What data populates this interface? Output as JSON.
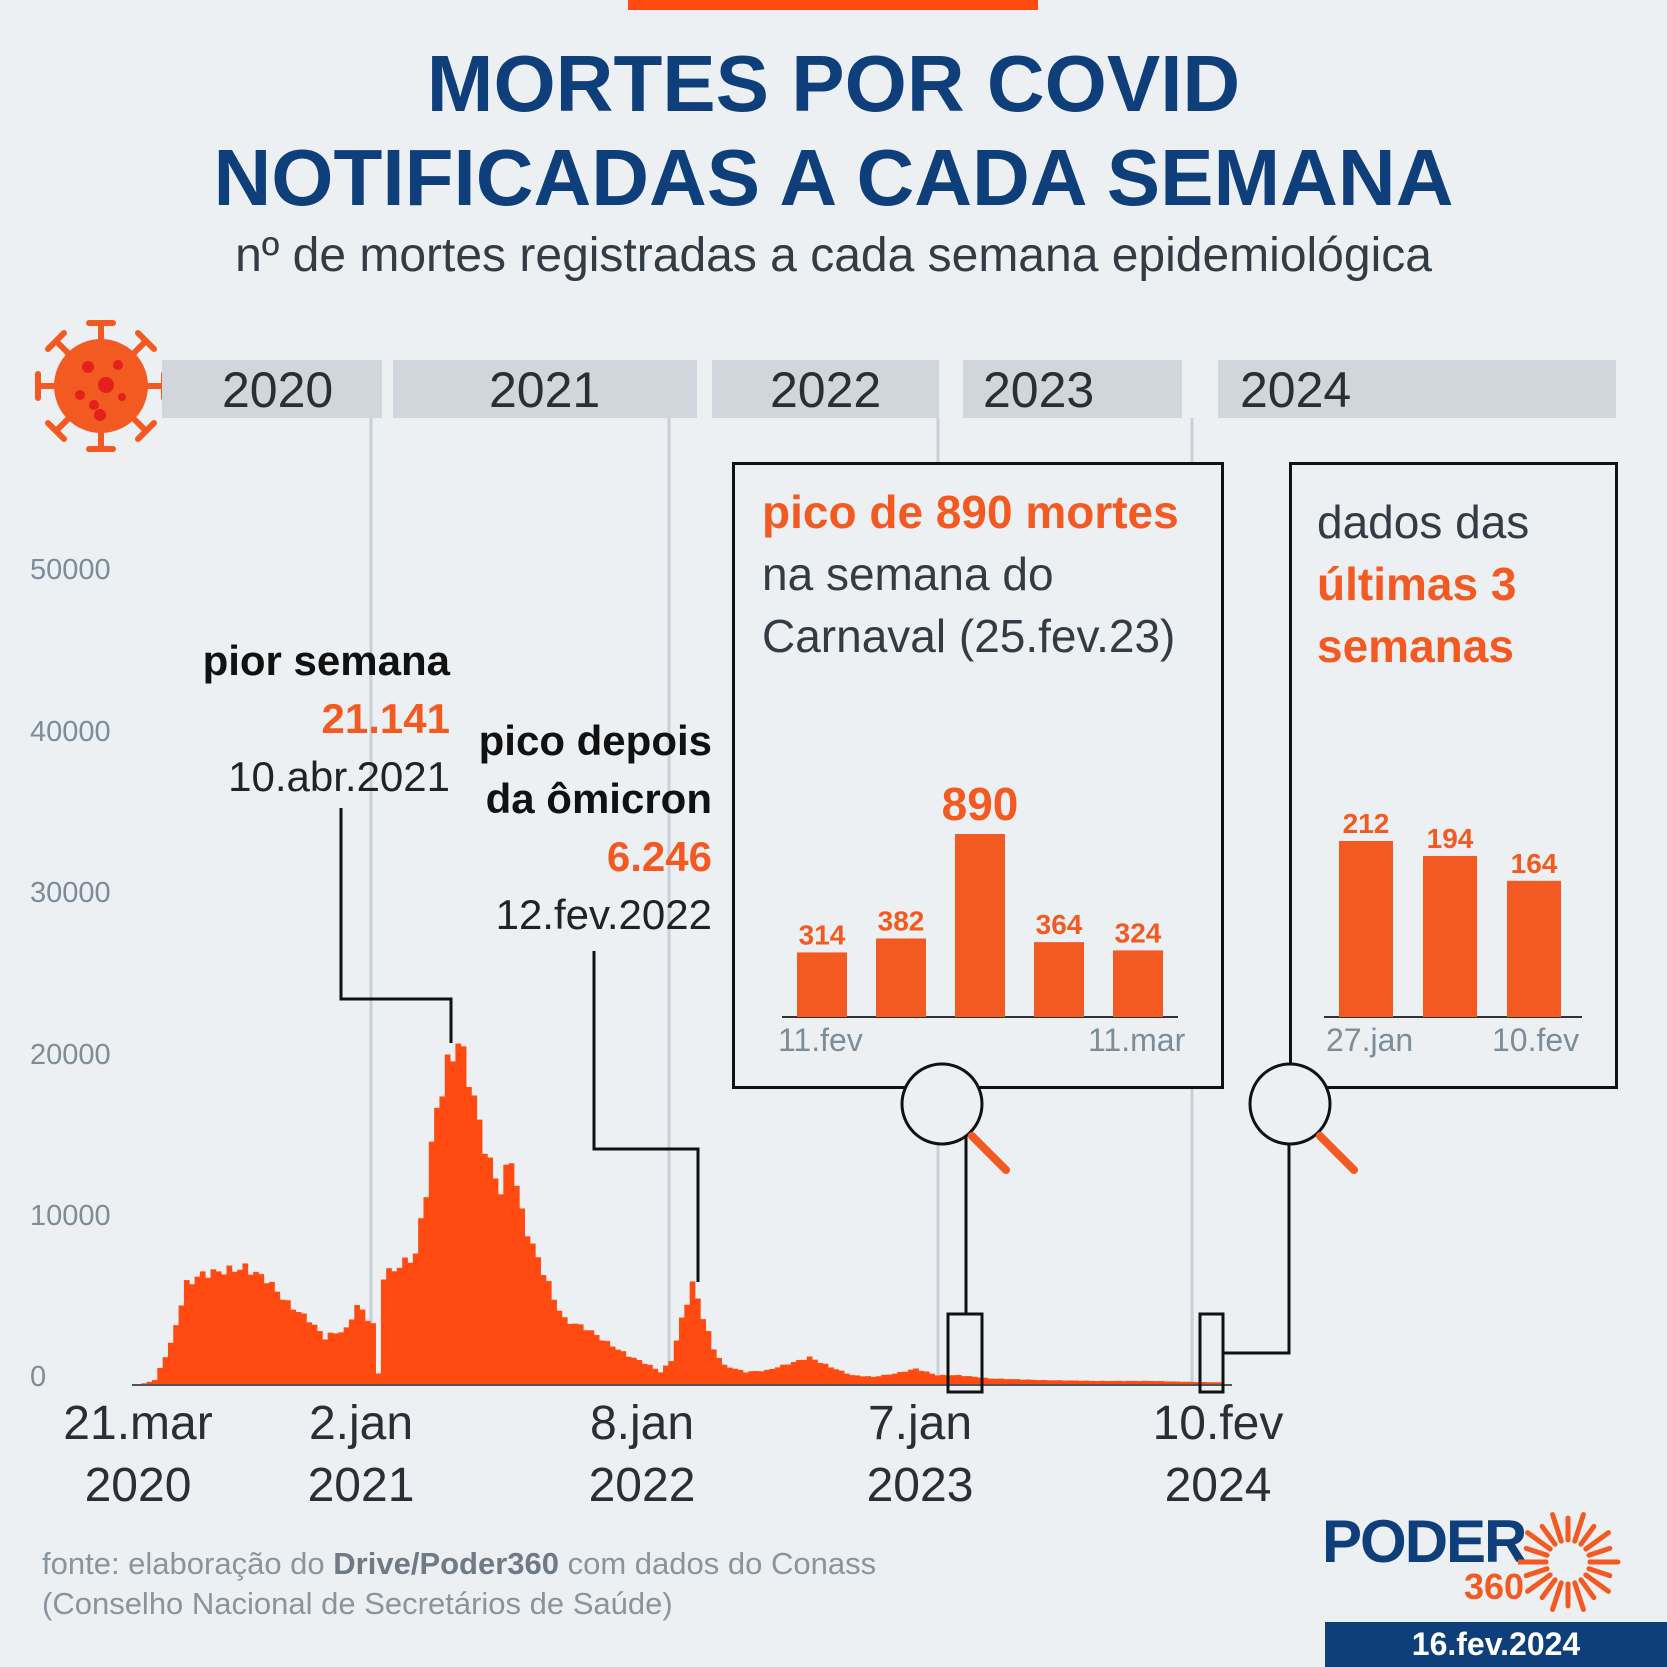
{
  "header": {
    "title_line1": "MORTES POR COVID",
    "title_line2": "NOTIFICADAS A CADA SEMANA",
    "subtitle": "nº de mortes registradas a cada semana epidemiológica"
  },
  "years": [
    "2020",
    "2021",
    "2022",
    "2023",
    "2024"
  ],
  "y_ticks": [
    "0",
    "10000",
    "20000",
    "30000",
    "40000",
    "50000"
  ],
  "x_labels": [
    {
      "line1": "21.mar",
      "line2": "2020"
    },
    {
      "line1": "2.jan",
      "line2": "2021"
    },
    {
      "line1": "8.jan",
      "line2": "2022"
    },
    {
      "line1": "7.jan",
      "line2": "2023"
    },
    {
      "line1": "10.fev",
      "line2": "2024"
    }
  ],
  "annotations": {
    "worst": {
      "title": "pior semana",
      "value": "21.141",
      "date": "10.abr.2021"
    },
    "omicron": {
      "title_line1": "pico depois",
      "title_line2": "da ômicron",
      "value": "6.246",
      "date": "12.fev.2022"
    }
  },
  "carnaval_box": {
    "line1": "pico de 890 mortes",
    "line2": "na semana do",
    "line3": "Carnaval (25.fev.23)",
    "x_start": "11.fev",
    "x_end": "11.mar"
  },
  "recent_box": {
    "line1": "dados das",
    "line2": "últimas 3",
    "line3": "semanas",
    "x_start": "27.jan",
    "x_end": "10.fev"
  },
  "footer": {
    "source_prefix": "fonte: elaboração do ",
    "source_bold": "Drive/Poder360",
    "source_suffix": " com dados do Conass",
    "source_line2": "(Conselho Nacional de Secretários de Saúde)",
    "logo_word": "PODER",
    "logo_number": "360",
    "date": "16.fev.2024"
  },
  "colors": {
    "accent": "#ff4b12",
    "bar": "#f25a22",
    "navy": "#0f3f7a"
  },
  "chart_data": [
    {
      "type": "bar",
      "title": "MORTES POR COVID NOTIFICADAS A CADA SEMANA",
      "ylim": [
        0,
        50000
      ],
      "x_start_week": "21.mar.2020",
      "x_end_week": "10.fev.2024",
      "peaks": [
        {
          "label": "pior semana",
          "date": "10.abr.2021",
          "value": 21141
        },
        {
          "label": "pico depois da ômicron",
          "date": "12.fev.2022",
          "value": 6246
        }
      ],
      "keyframes": [
        {
          "week": 0,
          "value": 0
        },
        {
          "week": 3,
          "value": 300
        },
        {
          "week": 6,
          "value": 2500
        },
        {
          "week": 9,
          "value": 6200
        },
        {
          "week": 12,
          "value": 6800
        },
        {
          "week": 16,
          "value": 7000
        },
        {
          "week": 20,
          "value": 7200
        },
        {
          "week": 24,
          "value": 6500
        },
        {
          "week": 28,
          "value": 5000
        },
        {
          "week": 32,
          "value": 4000
        },
        {
          "week": 35,
          "value": 2900
        },
        {
          "week": 36,
          "value": 3100
        },
        {
          "week": 39,
          "value": 3400
        },
        {
          "week": 41,
          "value": 4900
        },
        {
          "week": 44,
          "value": 3700
        },
        {
          "week": 45,
          "value": 700
        },
        {
          "week": 46,
          "value": 6700
        },
        {
          "week": 49,
          "value": 7300
        },
        {
          "week": 52,
          "value": 8000
        },
        {
          "week": 54,
          "value": 12000
        },
        {
          "week": 56,
          "value": 17000
        },
        {
          "week": 58,
          "value": 19500
        },
        {
          "week": 60,
          "value": 21141
        },
        {
          "week": 62,
          "value": 19000
        },
        {
          "week": 64,
          "value": 16000
        },
        {
          "week": 66,
          "value": 13500
        },
        {
          "week": 68,
          "value": 12000
        },
        {
          "week": 70,
          "value": 14000
        },
        {
          "week": 72,
          "value": 10500
        },
        {
          "week": 74,
          "value": 8500
        },
        {
          "week": 76,
          "value": 7000
        },
        {
          "week": 78,
          "value": 5300
        },
        {
          "week": 80,
          "value": 4000
        },
        {
          "week": 84,
          "value": 3500
        },
        {
          "week": 88,
          "value": 2600
        },
        {
          "week": 92,
          "value": 1800
        },
        {
          "week": 96,
          "value": 1200
        },
        {
          "week": 98,
          "value": 800
        },
        {
          "week": 100,
          "value": 1500
        },
        {
          "week": 102,
          "value": 4000
        },
        {
          "week": 104,
          "value": 6246
        },
        {
          "week": 106,
          "value": 4200
        },
        {
          "week": 108,
          "value": 2200
        },
        {
          "week": 110,
          "value": 1200
        },
        {
          "week": 114,
          "value": 800
        },
        {
          "week": 118,
          "value": 900
        },
        {
          "week": 122,
          "value": 1300
        },
        {
          "week": 126,
          "value": 1700
        },
        {
          "week": 130,
          "value": 1100
        },
        {
          "week": 134,
          "value": 600
        },
        {
          "week": 138,
          "value": 500
        },
        {
          "week": 142,
          "value": 700
        },
        {
          "week": 146,
          "value": 1000
        },
        {
          "week": 150,
          "value": 600
        },
        {
          "week": 154,
          "value": 600
        },
        {
          "week": 160,
          "value": 400
        },
        {
          "week": 170,
          "value": 300
        },
        {
          "week": 180,
          "value": 250
        },
        {
          "week": 190,
          "value": 250
        },
        {
          "week": 196,
          "value": 200
        },
        {
          "week": 203,
          "value": 164
        }
      ]
    },
    {
      "type": "bar",
      "title": "pico de 890 mortes na semana do Carnaval (25.fev.23)",
      "categories": [
        "11.fev",
        "",
        "25.fev",
        "",
        "11.mar"
      ],
      "values": [
        314,
        382,
        890,
        364,
        324
      ]
    },
    {
      "type": "bar",
      "title": "dados das últimas 3 semanas",
      "categories": [
        "27.jan",
        "",
        "10.fev"
      ],
      "values": [
        212,
        194,
        164
      ]
    }
  ]
}
